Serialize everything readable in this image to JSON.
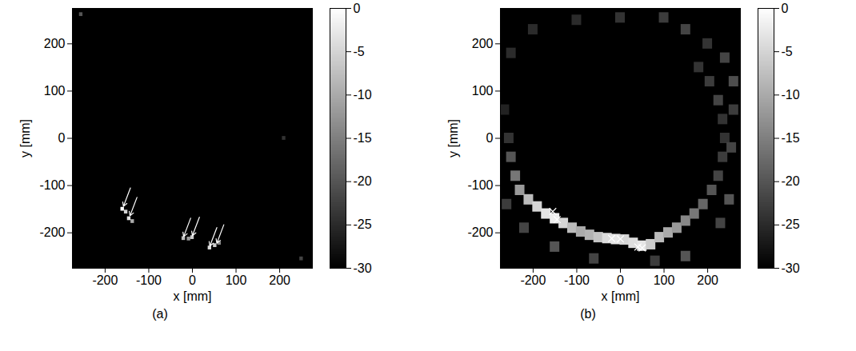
{
  "chart_data": [
    {
      "type": "heatmap",
      "title": "(a)",
      "xlabel": "x [mm]",
      "ylabel": "y [mm]",
      "xlim": [
        -275,
        275
      ],
      "ylim": [
        -275,
        275
      ],
      "xticks": [
        -200,
        -100,
        0,
        100,
        200
      ],
      "yticks": [
        -200,
        -100,
        0,
        100,
        200
      ],
      "cell_size": 8,
      "cells": [
        [
          -160,
          -150,
          0
        ],
        [
          -152,
          -156,
          -5
        ],
        [
          -145,
          -170,
          -3
        ],
        [
          -137,
          -176,
          -10
        ],
        [
          -20,
          -212,
          -8
        ],
        [
          -8,
          -213,
          -12
        ],
        [
          0,
          -210,
          -6
        ],
        [
          40,
          -232,
          -4
        ],
        [
          52,
          -227,
          -6
        ],
        [
          62,
          -222,
          -14
        ],
        [
          -255,
          262,
          -20
        ],
        [
          250,
          -255,
          -22
        ],
        [
          210,
          0,
          -24
        ]
      ],
      "marker": "arrow",
      "targets": [
        [
          -160,
          -150
        ],
        [
          -145,
          -170
        ],
        [
          -22,
          -214
        ],
        [
          -2,
          -212
        ],
        [
          38,
          -234
        ],
        [
          54,
          -228
        ]
      ],
      "colorbar": {
        "range": [
          -30,
          0
        ],
        "ticks": [
          0,
          -5,
          -10,
          -15,
          -20,
          -25,
          -30
        ]
      }
    },
    {
      "type": "heatmap",
      "title": "(b)",
      "xlabel": "x [mm]",
      "ylabel": "y [mm]",
      "xlim": [
        -275,
        275
      ],
      "ylim": [
        -275,
        275
      ],
      "xticks": [
        -200,
        -100,
        0,
        100,
        200
      ],
      "yticks": [
        -200,
        -100,
        0,
        100,
        200
      ],
      "cell_size": 22,
      "cells": [
        [
          -230,
          -110,
          -12
        ],
        [
          -210,
          -130,
          -8
        ],
        [
          -190,
          -145,
          -5
        ],
        [
          -170,
          -160,
          -3
        ],
        [
          -150,
          -170,
          -2
        ],
        [
          -130,
          -180,
          -5
        ],
        [
          -110,
          -190,
          -8
        ],
        [
          -90,
          -198,
          -10
        ],
        [
          -70,
          -205,
          -9
        ],
        [
          -50,
          -210,
          -7
        ],
        [
          -30,
          -212,
          -4
        ],
        [
          -10,
          -214,
          -3
        ],
        [
          10,
          -215,
          -5
        ],
        [
          30,
          -222,
          -4
        ],
        [
          50,
          -228,
          -3
        ],
        [
          70,
          -225,
          -6
        ],
        [
          90,
          -210,
          -8
        ],
        [
          110,
          -200,
          -10
        ],
        [
          130,
          -190,
          -12
        ],
        [
          150,
          -175,
          -14
        ],
        [
          170,
          -160,
          -16
        ],
        [
          190,
          -140,
          -18
        ],
        [
          210,
          -110,
          -20
        ],
        [
          225,
          -80,
          -22
        ],
        [
          235,
          -40,
          -23
        ],
        [
          240,
          0,
          -24
        ],
        [
          235,
          40,
          -24
        ],
        [
          225,
          80,
          -22
        ],
        [
          205,
          120,
          -23
        ],
        [
          180,
          150,
          -24
        ],
        [
          -240,
          -80,
          -16
        ],
        [
          -250,
          -40,
          -20
        ],
        [
          -255,
          0,
          -24
        ],
        [
          150,
          230,
          -22
        ],
        [
          200,
          200,
          -24
        ],
        [
          240,
          170,
          -22
        ],
        [
          260,
          120,
          -21
        ],
        [
          260,
          60,
          -23
        ],
        [
          255,
          -20,
          -22
        ],
        [
          250,
          -130,
          -20
        ],
        [
          230,
          -180,
          -22
        ],
        [
          150,
          -250,
          -20
        ],
        [
          80,
          -260,
          -23
        ],
        [
          -60,
          -255,
          -22
        ],
        [
          -150,
          -230,
          -20
        ],
        [
          -220,
          -190,
          -22
        ],
        [
          -260,
          -140,
          -23
        ],
        [
          -250,
          180,
          -25
        ],
        [
          -200,
          230,
          -25
        ],
        [
          -100,
          250,
          -25
        ],
        [
          0,
          255,
          -24
        ],
        [
          100,
          255,
          -23
        ],
        [
          -265,
          60,
          -26
        ]
      ],
      "marker": "x",
      "targets": [
        [
          -155,
          -155
        ],
        [
          -145,
          -172
        ],
        [
          -20,
          -212
        ],
        [
          0,
          -213
        ],
        [
          40,
          -230
        ],
        [
          50,
          -232
        ]
      ],
      "colorbar": {
        "range": [
          -30,
          0
        ],
        "ticks": [
          0,
          -5,
          -10,
          -15,
          -20,
          -25,
          -30
        ]
      }
    }
  ]
}
